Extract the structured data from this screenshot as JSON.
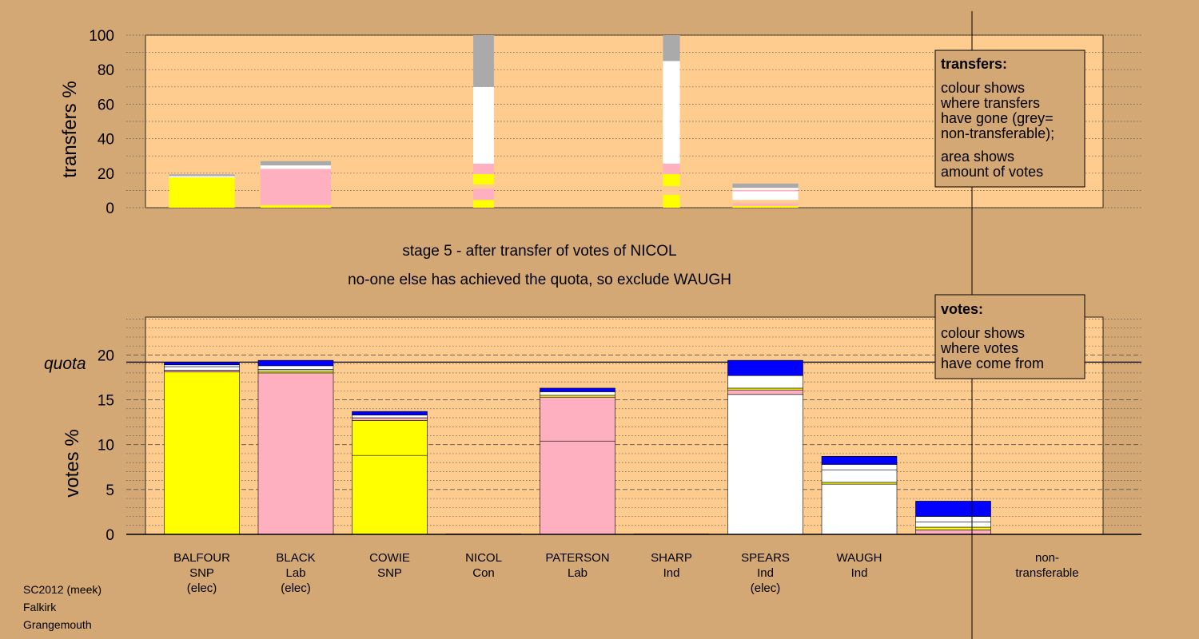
{
  "stage_title": "stage 5 - after transfer of votes of NICOL",
  "stage_subtitle": "no-one else has achieved the quota, so exclude WAUGH",
  "footer": [
    "SC2012 (meek)",
    "Falkirk",
    "Grangemouth"
  ],
  "colors": {
    "background": "#d4a874",
    "plot_area": "#ffcc8f",
    "SNP": "#ffff00",
    "Lab": "#ffb0c0",
    "Ind": "#ffffff",
    "Con": "#0000ff",
    "non_transferable": "#aaaaaa"
  },
  "transfers_legend": {
    "title": "transfers:",
    "lines_a": [
      "colour shows",
      "where transfers",
      "have gone (grey=",
      "non-transferable);"
    ],
    "lines_b": [
      "area shows",
      "amount of votes"
    ]
  },
  "votes_legend": {
    "title": "votes:",
    "lines": [
      "colour shows",
      "where votes",
      "have come from"
    ]
  },
  "chart_data": [
    {
      "type": "bar",
      "name": "transfers",
      "ylabel": "transfers %",
      "ylim": [
        0,
        100
      ],
      "yticks": [
        0,
        20,
        40,
        60,
        80,
        100
      ],
      "grid": true,
      "bars": [
        {
          "center": 1.0,
          "width": 0.7,
          "segments": [
            {
              "value": 17.5,
              "color": "#ffff00"
            },
            {
              "value": 0.8,
              "color": "#ffffff"
            },
            {
              "value": 1.0,
              "color": "#aaaaaa"
            }
          ]
        },
        {
          "center": 2.0,
          "width": 0.75,
          "segments": [
            {
              "value": 1.5,
              "color": "#ffff00"
            },
            {
              "value": 21.0,
              "color": "#ffb0c0"
            },
            {
              "value": 2.0,
              "color": "#ffffff"
            },
            {
              "value": 2.5,
              "color": "#aaaaaa"
            }
          ]
        },
        {
          "center": 4.0,
          "width": 0.22,
          "segments": [
            {
              "value": 4.5,
              "color": "#ffff00"
            },
            {
              "value": 6.5,
              "color": "#ffb0c0"
            },
            {
              "value": 2.5,
              "color": "#ffcc8f"
            },
            {
              "value": 6.0,
              "color": "#ffff00"
            },
            {
              "value": 6.0,
              "color": "#ffb0c0"
            },
            {
              "value": 44.5,
              "color": "#ffffff"
            },
            {
              "value": 30.0,
              "color": "#aaaaaa"
            }
          ]
        },
        {
          "center": 6.0,
          "width": 0.18,
          "segments": [
            {
              "value": 7.5,
              "color": "#ffff00"
            },
            {
              "value": 5.0,
              "color": "#ffcc8f"
            },
            {
              "value": 7.0,
              "color": "#ffff00"
            },
            {
              "value": 6.0,
              "color": "#ffb0c0"
            },
            {
              "value": 59.5,
              "color": "#ffffff"
            },
            {
              "value": 15.0,
              "color": "#aaaaaa"
            }
          ]
        },
        {
          "center": 7.0,
          "width": 0.7,
          "segments": [
            {
              "value": 1.0,
              "color": "#ffff00"
            },
            {
              "value": 1.5,
              "color": "#ffb0c0"
            },
            {
              "value": 2.0,
              "color": "#ffcc8f"
            },
            {
              "value": 5.0,
              "color": "#ffffff"
            },
            {
              "value": 0.8,
              "color": "#ffb0c0"
            },
            {
              "value": 1.2,
              "color": "#ffffff"
            },
            {
              "value": 2.5,
              "color": "#aaaaaa"
            }
          ]
        }
      ]
    },
    {
      "type": "bar",
      "name": "votes",
      "ylabel": "votes %",
      "ylim": [
        0,
        25
      ],
      "yticks": [
        0,
        5,
        10,
        15,
        20
      ],
      "quota": 19.2,
      "quota_label": "quota",
      "grid": true,
      "categories": [
        [
          "BALFOUR",
          "SNP",
          "(elec)"
        ],
        [
          "BLACK",
          "Lab",
          "(elec)"
        ],
        [
          "COWIE",
          "SNP"
        ],
        [
          "NICOL",
          "Con"
        ],
        [
          "PATERSON",
          "Lab"
        ],
        [
          "SHARP",
          "Ind"
        ],
        [
          "SPEARS",
          "Ind",
          "(elec)"
        ],
        [
          "WAUGH",
          "Ind"
        ],
        [
          "non-",
          "transferable"
        ]
      ],
      "bars": [
        {
          "index": 0,
          "segments": [
            {
              "value": 18.1,
              "color": "#ffff00"
            },
            {
              "value": 0.2,
              "color": "#ffb0c0"
            },
            {
              "value": 0.4,
              "color": "#ffffff"
            },
            {
              "value": 0.2,
              "color": "#ffffff"
            },
            {
              "value": 0.3,
              "color": "#0000ff"
            }
          ]
        },
        {
          "index": 1,
          "segments": [
            {
              "value": 18.0,
              "color": "#ffb0c0"
            },
            {
              "value": 0.2,
              "color": "#ffff00"
            },
            {
              "value": 0.2,
              "color": "#ffffff"
            },
            {
              "value": 0.4,
              "color": "#ffffff"
            },
            {
              "value": 0.6,
              "color": "#0000ff"
            }
          ]
        },
        {
          "index": 2,
          "segments": [
            {
              "value": 8.8,
              "color": "#ffff00"
            },
            {
              "value": 3.9,
              "color": "#ffff00"
            },
            {
              "value": 0.3,
              "color": "#ffb0c0"
            },
            {
              "value": 0.3,
              "color": "#ffffff"
            },
            {
              "value": 0.4,
              "color": "#0000ff"
            }
          ]
        },
        {
          "index": 3,
          "segments": [
            {
              "value": 0.05,
              "color": "#0000ff"
            }
          ]
        },
        {
          "index": 4,
          "segments": [
            {
              "value": 10.4,
              "color": "#ffb0c0"
            },
            {
              "value": 4.9,
              "color": "#ffb0c0"
            },
            {
              "value": 0.2,
              "color": "#ffff00"
            },
            {
              "value": 0.4,
              "color": "#ffffff"
            },
            {
              "value": 0.4,
              "color": "#0000ff"
            }
          ]
        },
        {
          "index": 5,
          "segments": [
            {
              "value": 0.05,
              "color": "#ffffff"
            }
          ]
        },
        {
          "index": 6,
          "segments": [
            {
              "value": 15.6,
              "color": "#ffffff"
            },
            {
              "value": 0.5,
              "color": "#ffb0c0"
            },
            {
              "value": 0.2,
              "color": "#ffff00"
            },
            {
              "value": 1.4,
              "color": "#ffffff"
            },
            {
              "value": 1.7,
              "color": "#0000ff"
            }
          ]
        },
        {
          "index": 7,
          "segments": [
            {
              "value": 5.6,
              "color": "#ffffff"
            },
            {
              "value": 0.2,
              "color": "#ffff00"
            },
            {
              "value": 1.4,
              "color": "#ffffff"
            },
            {
              "value": 0.6,
              "color": "#ffffff"
            },
            {
              "value": 0.9,
              "color": "#0000ff"
            }
          ]
        },
        {
          "index": 8,
          "segments": [
            {
              "value": 0.5,
              "color": "#ffb0c0"
            },
            {
              "value": 0.3,
              "color": "#ffff00"
            },
            {
              "value": 0.6,
              "color": "#ffffff"
            },
            {
              "value": 0.6,
              "color": "#ffffff"
            },
            {
              "value": 1.7,
              "color": "#0000ff"
            }
          ]
        }
      ]
    }
  ]
}
